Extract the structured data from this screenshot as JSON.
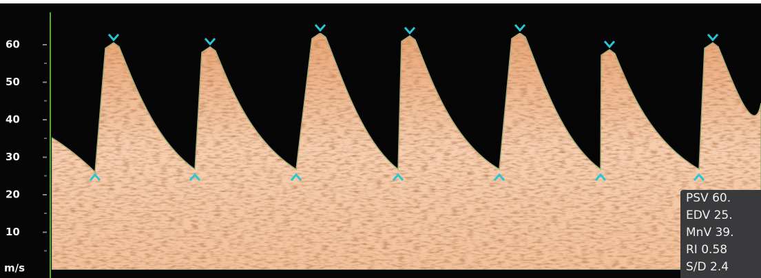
{
  "axis": {
    "labels": [
      "60",
      "50",
      "40",
      "30",
      "20",
      "10"
    ],
    "unit": "m/s"
  },
  "measurements": [
    "PSV 60.",
    "EDV 25.",
    "MnV 39.",
    "RI 0.58",
    "S/D 2.4"
  ]
}
